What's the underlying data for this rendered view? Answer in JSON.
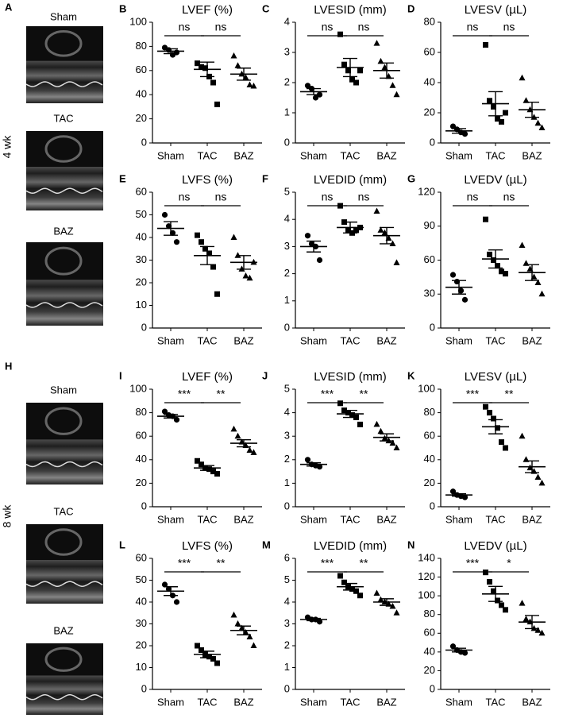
{
  "figure": {
    "panels": [
      {
        "letter": "A",
        "period": "4 wk",
        "labels": [
          "Sham",
          "TAC",
          "BAZ"
        ]
      },
      {
        "letter": "H",
        "period": "8 wk",
        "labels": [
          "Sham",
          "TAC",
          "BAZ"
        ]
      }
    ]
  },
  "chart_data": [
    {
      "type": "dot",
      "panel": "B",
      "title": "LVEF (%)",
      "categories": [
        "Sham",
        "TAC",
        "BAZ"
      ],
      "markers": [
        "circle",
        "square",
        "triangle"
      ],
      "color": "#000000",
      "values": [
        [
          79,
          77,
          73,
          75
        ],
        [
          66,
          63,
          62,
          55,
          50,
          32
        ],
        [
          72,
          64,
          57,
          54,
          48,
          47
        ]
      ],
      "mean": [
        76,
        61,
        57
      ],
      "sem": [
        2,
        6,
        5
      ],
      "ylim": [
        0,
        100
      ],
      "yticks": [
        0,
        20,
        40,
        60,
        80,
        100
      ],
      "significance": [
        "ns",
        "ns"
      ]
    },
    {
      "type": "dot",
      "panel": "C",
      "title": "LVESID (mm)",
      "categories": [
        "Sham",
        "TAC",
        "BAZ"
      ],
      "markers": [
        "circle",
        "square",
        "triangle"
      ],
      "color": "#000000",
      "values": [
        [
          1.9,
          1.8,
          1.5,
          1.6
        ],
        [
          3.6,
          2.6,
          2.4,
          2.1,
          2.0,
          2.4
        ],
        [
          3.3,
          2.7,
          2.5,
          2.2,
          1.9,
          1.6
        ]
      ],
      "mean": [
        1.7,
        2.5,
        2.4
      ],
      "sem": [
        0.1,
        0.3,
        0.25
      ],
      "ylim": [
        0,
        4
      ],
      "yticks": [
        0,
        1,
        2,
        3,
        4
      ],
      "significance": [
        "ns",
        "ns"
      ]
    },
    {
      "type": "dot",
      "panel": "D",
      "title": "LVESV (µL)",
      "categories": [
        "Sham",
        "TAC",
        "BAZ"
      ],
      "markers": [
        "circle",
        "square",
        "triangle"
      ],
      "color": "#000000",
      "values": [
        [
          11,
          9,
          7,
          6
        ],
        [
          65,
          28,
          24,
          16,
          14,
          20
        ],
        [
          43,
          28,
          22,
          17,
          13,
          10
        ]
      ],
      "mean": [
        8,
        26,
        22
      ],
      "sem": [
        1.5,
        8,
        5
      ],
      "ylim": [
        0,
        80
      ],
      "yticks": [
        0,
        20,
        40,
        60,
        80
      ],
      "significance": [
        "ns",
        "ns"
      ]
    },
    {
      "type": "dot",
      "panel": "E",
      "title": "LVFS (%)",
      "categories": [
        "Sham",
        "TAC",
        "BAZ"
      ],
      "markers": [
        "circle",
        "square",
        "triangle"
      ],
      "color": "#000000",
      "values": [
        [
          50,
          45,
          42,
          38
        ],
        [
          41,
          38,
          35,
          33,
          27,
          15
        ],
        [
          40,
          32,
          26,
          23,
          22,
          29
        ]
      ],
      "mean": [
        44,
        32,
        29
      ],
      "sem": [
        3,
        4,
        3
      ],
      "ylim": [
        0,
        60
      ],
      "yticks": [
        0,
        10,
        20,
        30,
        40,
        50,
        60
      ],
      "significance": [
        "ns",
        "ns"
      ]
    },
    {
      "type": "dot",
      "panel": "F",
      "title": "LVEDID (mm)",
      "categories": [
        "Sham",
        "TAC",
        "BAZ"
      ],
      "markers": [
        "circle",
        "square",
        "triangle"
      ],
      "color": "#000000",
      "values": [
        [
          3.4,
          3.1,
          3.0,
          2.5
        ],
        [
          4.5,
          3.9,
          3.6,
          3.5,
          3.6,
          3.7
        ],
        [
          4.3,
          3.6,
          3.5,
          3.3,
          3.1,
          2.4
        ]
      ],
      "mean": [
        3.0,
        3.7,
        3.4
      ],
      "sem": [
        0.2,
        0.2,
        0.3
      ],
      "ylim": [
        0,
        5
      ],
      "yticks": [
        0,
        1,
        2,
        3,
        4,
        5
      ],
      "significance": [
        "ns",
        "ns"
      ]
    },
    {
      "type": "dot",
      "panel": "G",
      "title": "LVEDV (µL)",
      "categories": [
        "Sham",
        "TAC",
        "BAZ"
      ],
      "markers": [
        "circle",
        "square",
        "triangle"
      ],
      "color": "#000000",
      "values": [
        [
          47,
          41,
          33,
          25
        ],
        [
          96,
          65,
          60,
          55,
          50,
          48
        ],
        [
          73,
          57,
          52,
          45,
          40,
          30
        ]
      ],
      "mean": [
        36,
        61,
        49
      ],
      "sem": [
        6,
        8,
        7
      ],
      "ylim": [
        0,
        120
      ],
      "yticks": [
        0,
        30,
        60,
        90,
        120
      ],
      "significance": [
        "ns",
        "ns"
      ]
    },
    {
      "type": "dot",
      "panel": "I",
      "title": "LVEF (%)",
      "categories": [
        "Sham",
        "TAC",
        "BAZ"
      ],
      "markers": [
        "circle",
        "square",
        "triangle"
      ],
      "color": "#000000",
      "values": [
        [
          81,
          78,
          77,
          74
        ],
        [
          39,
          36,
          33,
          32,
          30,
          28
        ],
        [
          66,
          60,
          55,
          52,
          48,
          46
        ]
      ],
      "mean": [
        77,
        33,
        54
      ],
      "sem": [
        1.5,
        2,
        3
      ],
      "ylim": [
        0,
        100
      ],
      "yticks": [
        0,
        20,
        40,
        60,
        80,
        100
      ],
      "significance": [
        "***",
        "**"
      ]
    },
    {
      "type": "dot",
      "panel": "J",
      "title": "LVESID (mm)",
      "categories": [
        "Sham",
        "TAC",
        "BAZ"
      ],
      "markers": [
        "circle",
        "square",
        "triangle"
      ],
      "color": "#000000",
      "values": [
        [
          2.0,
          1.8,
          1.75,
          1.7
        ],
        [
          4.4,
          4.1,
          4.0,
          3.9,
          3.8,
          3.5
        ],
        [
          3.5,
          3.2,
          2.9,
          2.8,
          2.7,
          2.5
        ]
      ],
      "mean": [
        1.8,
        3.95,
        2.95
      ],
      "sem": [
        0.07,
        0.15,
        0.15
      ],
      "ylim": [
        0,
        5
      ],
      "yticks": [
        0,
        1,
        2,
        3,
        4,
        5
      ],
      "significance": [
        "***",
        "**"
      ]
    },
    {
      "type": "dot",
      "panel": "K",
      "title": "LVESV (µL)",
      "categories": [
        "Sham",
        "TAC",
        "BAZ"
      ],
      "markers": [
        "circle",
        "square",
        "triangle"
      ],
      "color": "#000000",
      "values": [
        [
          13,
          10,
          9,
          8
        ],
        [
          85,
          80,
          75,
          67,
          55,
          50
        ],
        [
          60,
          40,
          33,
          30,
          25,
          20
        ]
      ],
      "mean": [
        10,
        68,
        34
      ],
      "sem": [
        1,
        6,
        5
      ],
      "ylim": [
        0,
        100
      ],
      "yticks": [
        0,
        20,
        40,
        60,
        80,
        100
      ],
      "significance": [
        "***",
        "**"
      ]
    },
    {
      "type": "dot",
      "panel": "L",
      "title": "LVFS (%)",
      "categories": [
        "Sham",
        "TAC",
        "BAZ"
      ],
      "markers": [
        "circle",
        "square",
        "triangle"
      ],
      "color": "#000000",
      "values": [
        [
          48,
          46,
          43,
          40
        ],
        [
          20,
          18,
          16,
          15,
          14,
          12
        ],
        [
          34,
          30,
          28,
          26,
          24,
          20
        ]
      ],
      "mean": [
        45,
        16,
        27
      ],
      "sem": [
        2,
        1.5,
        2
      ],
      "ylim": [
        0,
        60
      ],
      "yticks": [
        0,
        10,
        20,
        30,
        40,
        50,
        60
      ],
      "significance": [
        "***",
        "**"
      ]
    },
    {
      "type": "dot",
      "panel": "M",
      "title": "LVEDID (mm)",
      "categories": [
        "Sham",
        "TAC",
        "BAZ"
      ],
      "markers": [
        "circle",
        "square",
        "triangle"
      ],
      "color": "#000000",
      "values": [
        [
          3.3,
          3.2,
          3.2,
          3.1
        ],
        [
          5.2,
          4.9,
          4.7,
          4.6,
          4.5,
          4.3
        ],
        [
          4.4,
          4.1,
          4.0,
          3.9,
          3.8,
          3.5
        ]
      ],
      "mean": [
        3.2,
        4.7,
        4.0
      ],
      "sem": [
        0.05,
        0.15,
        0.15
      ],
      "ylim": [
        0,
        6
      ],
      "yticks": [
        0,
        1,
        2,
        3,
        4,
        5,
        6
      ],
      "significance": [
        "***",
        "**"
      ]
    },
    {
      "type": "dot",
      "panel": "N",
      "title": "LVEDV (µL)",
      "categories": [
        "Sham",
        "TAC",
        "BAZ"
      ],
      "markers": [
        "circle",
        "square",
        "triangle"
      ],
      "color": "#000000",
      "values": [
        [
          46,
          42,
          40,
          39
        ],
        [
          125,
          115,
          105,
          95,
          90,
          85
        ],
        [
          92,
          75,
          72,
          65,
          63,
          60
        ]
      ],
      "mean": [
        42,
        102,
        72
      ],
      "sem": [
        2,
        8,
        7
      ],
      "ylim": [
        0,
        140
      ],
      "yticks": [
        0,
        20,
        40,
        60,
        80,
        100,
        120,
        140
      ],
      "significance": [
        "***",
        "*"
      ]
    }
  ]
}
